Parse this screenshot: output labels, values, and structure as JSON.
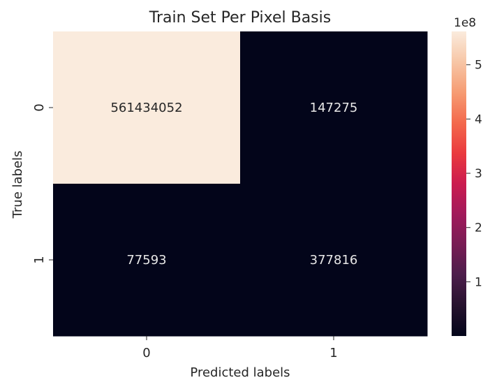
{
  "chart_data": {
    "type": "heatmap",
    "title": "Train Set Per Pixel Basis",
    "xlabel": "Predicted labels",
    "ylabel": "True labels",
    "x_categories": [
      "0",
      "1"
    ],
    "y_categories": [
      "0",
      "1"
    ],
    "values": [
      [
        561434052,
        147275
      ],
      [
        77593,
        377816
      ]
    ],
    "cell_labels": [
      [
        "561434052",
        "147275"
      ],
      [
        "77593",
        "377816"
      ]
    ],
    "colormap": "rocket",
    "colorbar": {
      "ticks": [
        1,
        2,
        3,
        4,
        5
      ],
      "tick_labels": [
        "1",
        "2",
        "3",
        "4",
        "5"
      ],
      "scale_label": "1e8",
      "range": [
        77593,
        561434052
      ]
    },
    "colors": {
      "low": "#03051a",
      "high": "#faebdd",
      "text_light": "#e8e8e8",
      "text_dark": "#262626"
    }
  }
}
